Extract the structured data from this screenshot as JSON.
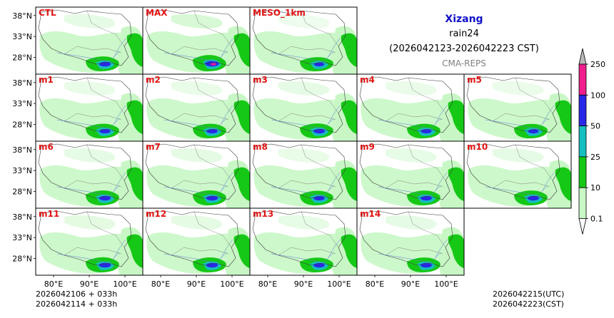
{
  "titles": {
    "region": "Xizang",
    "variable": "rain24",
    "period": "(2026042123-2026042223 CST)",
    "system": "CMA-REPS"
  },
  "footer": {
    "init_utc": "2026042106  +  033h",
    "init_cst": "2026042114  +  033h",
    "valid_utc": "2026042215(UTC)",
    "valid_cst": "2026042223(CST)"
  },
  "axes": {
    "lat_ticks": [
      38,
      33,
      28
    ],
    "lat_labels": [
      "38°N",
      "33°N",
      "28°N"
    ],
    "lon_ticks": [
      80,
      90,
      100
    ],
    "lon_labels": [
      "80°E",
      "90°E",
      "100°E"
    ],
    "lon_range": [
      75,
      105
    ],
    "lat_range": [
      24,
      40
    ]
  },
  "panels": [
    {
      "label": "CTL",
      "intensity": 1.0
    },
    {
      "label": "MAX",
      "intensity": 1.6
    },
    {
      "label": "MESO_1km",
      "intensity": 0.7
    },
    {
      "label": "m1",
      "intensity": 0.9
    },
    {
      "label": "m2",
      "intensity": 0.9
    },
    {
      "label": "m3",
      "intensity": 1.0
    },
    {
      "label": "m4",
      "intensity": 0.85
    },
    {
      "label": "m5",
      "intensity": 0.8
    },
    {
      "label": "m6",
      "intensity": 1.0
    },
    {
      "label": "m7",
      "intensity": 1.05
    },
    {
      "label": "m8",
      "intensity": 0.9
    },
    {
      "label": "m9",
      "intensity": 0.95
    },
    {
      "label": "m10",
      "intensity": 1.0
    },
    {
      "label": "m11",
      "intensity": 1.1
    },
    {
      "label": "m12",
      "intensity": 1.05
    },
    {
      "label": "m13",
      "intensity": 0.95
    },
    {
      "label": "m14",
      "intensity": 1.0
    }
  ],
  "colorbar": {
    "levels": [
      "0.1",
      "10",
      "25",
      "50",
      "100",
      "250"
    ],
    "colors": [
      "#c8f7c5",
      "#16c816",
      "#16bebe",
      "#2828e6",
      "#f01e8c"
    ],
    "extend_color": "#b8b8b8",
    "label_color": "#e01414"
  }
}
